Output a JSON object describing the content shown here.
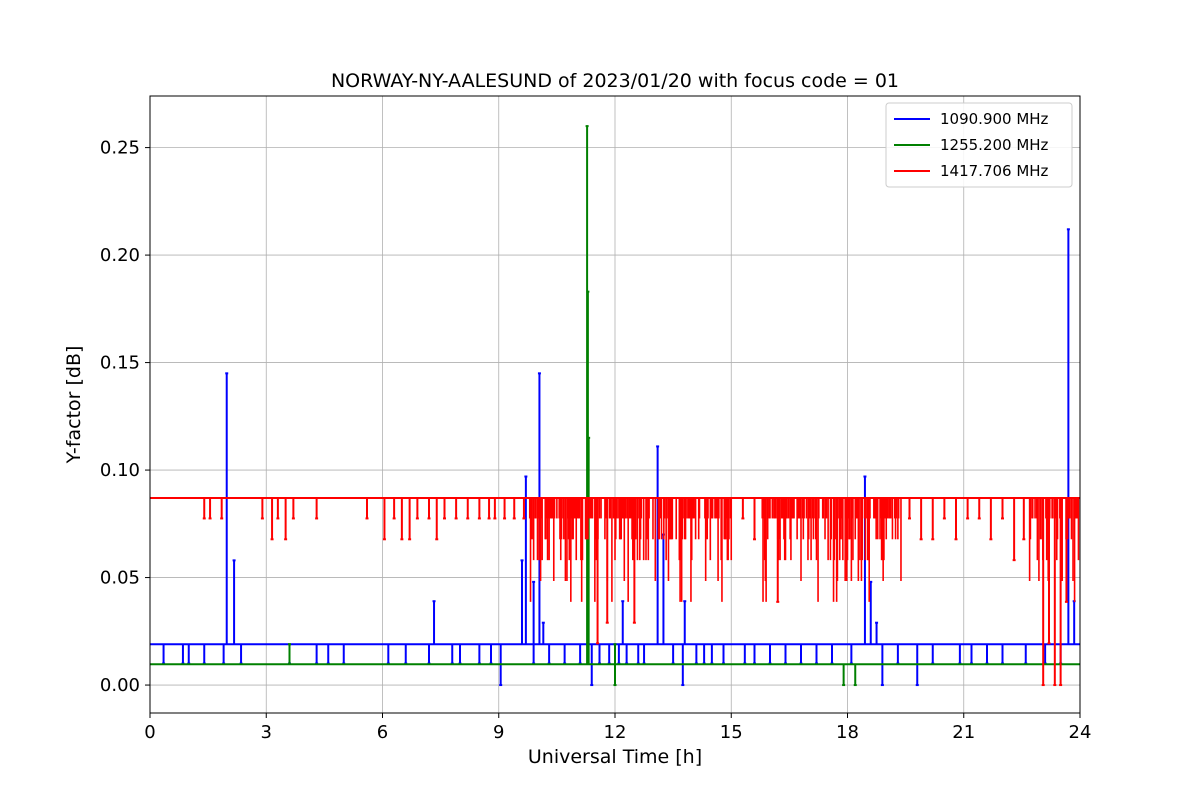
{
  "chart_data": {
    "type": "line",
    "title": "NORWAY-NY-AALESUND of 2023/01/20 with focus code = 01",
    "xlabel": "Universal Time [h]",
    "ylabel": "Y-factor [dB]",
    "xlim": [
      0,
      24
    ],
    "ylim": [
      -0.013,
      0.274
    ],
    "xticks": [
      0,
      3,
      6,
      9,
      12,
      15,
      18,
      21,
      24
    ],
    "xtick_labels": [
      "0",
      "3",
      "6",
      "9",
      "12",
      "15",
      "18",
      "21",
      "24"
    ],
    "yticks": [
      0.0,
      0.05,
      0.1,
      0.15,
      0.2,
      0.25
    ],
    "ytick_labels": [
      "0.00",
      "0.05",
      "0.10",
      "0.15",
      "0.20",
      "0.25"
    ],
    "grid": true,
    "legend_position": "top-right",
    "series": [
      {
        "name": "1090.900 MHz",
        "color": "#0000ff",
        "baseline": 0.019,
        "dips": [
          {
            "x": 0.35,
            "y": 0.01
          },
          {
            "x": 0.85,
            "y": 0.01
          },
          {
            "x": 1.0,
            "y": 0.01
          },
          {
            "x": 1.4,
            "y": 0.01
          },
          {
            "x": 1.9,
            "y": 0.01
          },
          {
            "x": 2.35,
            "y": 0.01
          },
          {
            "x": 3.6,
            "y": 0.01
          },
          {
            "x": 4.3,
            "y": 0.01
          },
          {
            "x": 4.6,
            "y": 0.01
          },
          {
            "x": 5.0,
            "y": 0.01
          },
          {
            "x": 6.15,
            "y": 0.01
          },
          {
            "x": 6.6,
            "y": 0.01
          },
          {
            "x": 7.2,
            "y": 0.01
          },
          {
            "x": 7.8,
            "y": 0.01
          },
          {
            "x": 8.0,
            "y": 0.01
          },
          {
            "x": 8.5,
            "y": 0.01
          },
          {
            "x": 8.8,
            "y": 0.01
          },
          {
            "x": 9.05,
            "y": 0.0
          },
          {
            "x": 9.9,
            "y": 0.01
          },
          {
            "x": 10.3,
            "y": 0.01
          },
          {
            "x": 10.7,
            "y": 0.01
          },
          {
            "x": 11.1,
            "y": 0.01
          },
          {
            "x": 11.4,
            "y": 0.0
          },
          {
            "x": 11.6,
            "y": 0.01
          },
          {
            "x": 11.85,
            "y": 0.01
          },
          {
            "x": 12.1,
            "y": 0.01
          },
          {
            "x": 12.3,
            "y": 0.01
          },
          {
            "x": 12.6,
            "y": 0.01
          },
          {
            "x": 12.75,
            "y": 0.01
          },
          {
            "x": 13.5,
            "y": 0.01
          },
          {
            "x": 13.75,
            "y": 0.0
          },
          {
            "x": 14.1,
            "y": 0.01
          },
          {
            "x": 14.3,
            "y": 0.01
          },
          {
            "x": 14.5,
            "y": 0.01
          },
          {
            "x": 14.8,
            "y": 0.01
          },
          {
            "x": 15.35,
            "y": 0.01
          },
          {
            "x": 15.6,
            "y": 0.01
          },
          {
            "x": 16.0,
            "y": 0.01
          },
          {
            "x": 16.4,
            "y": 0.01
          },
          {
            "x": 16.8,
            "y": 0.01
          },
          {
            "x": 17.2,
            "y": 0.01
          },
          {
            "x": 17.6,
            "y": 0.01
          },
          {
            "x": 18.1,
            "y": 0.01
          },
          {
            "x": 18.9,
            "y": 0.0
          },
          {
            "x": 19.3,
            "y": 0.01
          },
          {
            "x": 19.8,
            "y": 0.0
          },
          {
            "x": 20.2,
            "y": 0.01
          },
          {
            "x": 20.9,
            "y": 0.01
          },
          {
            "x": 21.2,
            "y": 0.01
          },
          {
            "x": 21.6,
            "y": 0.01
          },
          {
            "x": 22.0,
            "y": 0.01
          },
          {
            "x": 22.6,
            "y": 0.01
          },
          {
            "x": 23.1,
            "y": 0.01
          },
          {
            "x": 23.5,
            "y": 0.01
          }
        ],
        "spikes": [
          {
            "x": 1.98,
            "y": 0.145
          },
          {
            "x": 2.17,
            "y": 0.058
          },
          {
            "x": 7.33,
            "y": 0.039
          },
          {
            "x": 9.6,
            "y": 0.058
          },
          {
            "x": 9.7,
            "y": 0.097
          },
          {
            "x": 9.9,
            "y": 0.048
          },
          {
            "x": 10.05,
            "y": 0.145
          },
          {
            "x": 10.15,
            "y": 0.029
          },
          {
            "x": 12.2,
            "y": 0.039
          },
          {
            "x": 13.1,
            "y": 0.111
          },
          {
            "x": 13.25,
            "y": 0.07
          },
          {
            "x": 13.8,
            "y": 0.039
          },
          {
            "x": 18.45,
            "y": 0.097
          },
          {
            "x": 18.6,
            "y": 0.048
          },
          {
            "x": 18.75,
            "y": 0.029
          },
          {
            "x": 23.7,
            "y": 0.212
          },
          {
            "x": 23.85,
            "y": 0.039
          }
        ]
      },
      {
        "name": "1255.200 MHz",
        "color": "#008000",
        "baseline": 0.0097,
        "dips": [
          {
            "x": 12.0,
            "y": 0.0
          },
          {
            "x": 17.9,
            "y": 0.0
          },
          {
            "x": 18.2,
            "y": 0.0
          }
        ],
        "spikes": [
          {
            "x": 3.6,
            "y": 0.019
          },
          {
            "x": 11.28,
            "y": 0.26
          },
          {
            "x": 11.3,
            "y": 0.183
          },
          {
            "x": 11.32,
            "y": 0.115
          },
          {
            "x": 12.0,
            "y": 0.019
          }
        ]
      },
      {
        "name": "1417.706 MHz",
        "color": "#ff0000",
        "baseline": 0.087,
        "levels": [
          0.0775,
          0.0678,
          0.0581,
          0.0484,
          0.0387,
          0.029,
          0.0194,
          0.0097,
          0.0
        ],
        "dense_intervals": [
          [
            9.8,
            15.0
          ],
          [
            15.8,
            19.4
          ],
          [
            22.7,
            24.0
          ]
        ],
        "dips": [
          {
            "x": 1.4,
            "y": 0.0775
          },
          {
            "x": 1.55,
            "y": 0.0775
          },
          {
            "x": 1.85,
            "y": 0.0775
          },
          {
            "x": 2.9,
            "y": 0.0775
          },
          {
            "x": 3.15,
            "y": 0.0678
          },
          {
            "x": 3.3,
            "y": 0.0775
          },
          {
            "x": 3.5,
            "y": 0.0678
          },
          {
            "x": 3.7,
            "y": 0.0775
          },
          {
            "x": 4.3,
            "y": 0.0775
          },
          {
            "x": 5.6,
            "y": 0.0775
          },
          {
            "x": 6.05,
            "y": 0.0678
          },
          {
            "x": 6.3,
            "y": 0.0775
          },
          {
            "x": 6.5,
            "y": 0.0678
          },
          {
            "x": 6.7,
            "y": 0.0678
          },
          {
            "x": 6.9,
            "y": 0.0775
          },
          {
            "x": 7.2,
            "y": 0.0775
          },
          {
            "x": 7.4,
            "y": 0.0678
          },
          {
            "x": 7.6,
            "y": 0.0775
          },
          {
            "x": 7.9,
            "y": 0.0775
          },
          {
            "x": 8.2,
            "y": 0.0775
          },
          {
            "x": 8.5,
            "y": 0.0775
          },
          {
            "x": 8.75,
            "y": 0.0775
          },
          {
            "x": 8.9,
            "y": 0.0775
          },
          {
            "x": 9.15,
            "y": 0.0775
          },
          {
            "x": 9.4,
            "y": 0.0775
          },
          {
            "x": 9.65,
            "y": 0.0775
          },
          {
            "x": 15.3,
            "y": 0.0775
          },
          {
            "x": 15.6,
            "y": 0.0678
          },
          {
            "x": 19.6,
            "y": 0.0775
          },
          {
            "x": 19.9,
            "y": 0.0678
          },
          {
            "x": 20.2,
            "y": 0.0678
          },
          {
            "x": 20.5,
            "y": 0.0775
          },
          {
            "x": 20.8,
            "y": 0.0678
          },
          {
            "x": 21.1,
            "y": 0.0775
          },
          {
            "x": 21.4,
            "y": 0.0775
          },
          {
            "x": 21.7,
            "y": 0.0678
          },
          {
            "x": 22.0,
            "y": 0.0775
          },
          {
            "x": 22.3,
            "y": 0.0581
          },
          {
            "x": 22.55,
            "y": 0.0678
          }
        ],
        "extreme_dips": [
          {
            "x": 11.55,
            "y": 0.0194
          },
          {
            "x": 11.8,
            "y": 0.029
          },
          {
            "x": 12.5,
            "y": 0.029
          },
          {
            "x": 16.2,
            "y": 0.0387
          },
          {
            "x": 23.05,
            "y": 0.0
          },
          {
            "x": 23.35,
            "y": 0.0
          },
          {
            "x": 23.5,
            "y": 0.0
          },
          {
            "x": 23.2,
            "y": 0.0194
          },
          {
            "x": 23.65,
            "y": 0.0387
          }
        ]
      }
    ]
  }
}
